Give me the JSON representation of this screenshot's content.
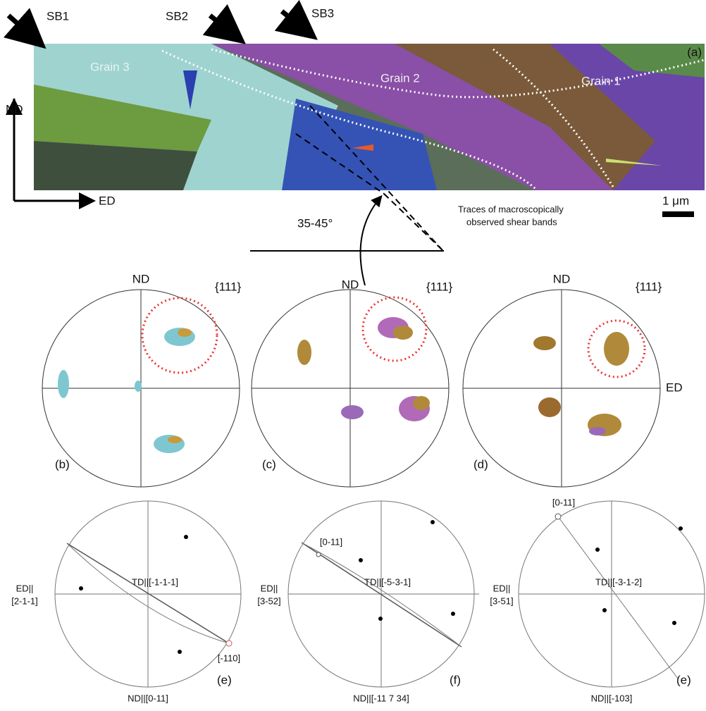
{
  "panel_a": {
    "shear_bands": [
      "SB1",
      "SB2",
      "SB3"
    ],
    "panel": "(a)",
    "grains": [
      "Grain 3",
      "Grain 2",
      "Grain 1"
    ],
    "axes": {
      "nd": "ND",
      "ed": "ED"
    },
    "scale": "1 μm",
    "angle": "35-45°",
    "trace_note_1": "Traces of macroscopically",
    "trace_note_2": "observed shear bands"
  },
  "pole_figures": [
    {
      "axis": "ND",
      "plane": "{111}",
      "panel": "(b)"
    },
    {
      "axis": "ND",
      "plane": "{111}",
      "panel": "(c)"
    },
    {
      "axis": "ND",
      "plane": "{111}",
      "side_axis": "ED",
      "panel": "(d)"
    }
  ],
  "stereograms": [
    {
      "ed_1": "ED||",
      "ed_2": "[2-1-1]",
      "td": "TD||[-1-1-1]",
      "pole": "[-110]",
      "nd": "ND||[0-11]",
      "panel": "(e)"
    },
    {
      "pole": "[0-11]",
      "ed_1": "ED||",
      "ed_2": "[3-52]",
      "td": "TD||[-5-3-1]",
      "nd": "ND||[-11 7 34]",
      "panel": "(f)"
    },
    {
      "pole": "[0-11]",
      "ed_1": "ED||",
      "ed_2": "[3-51]",
      "td": "TD||[-3-1-2]",
      "nd": "ND||[-103]",
      "panel": "(e)"
    }
  ]
}
